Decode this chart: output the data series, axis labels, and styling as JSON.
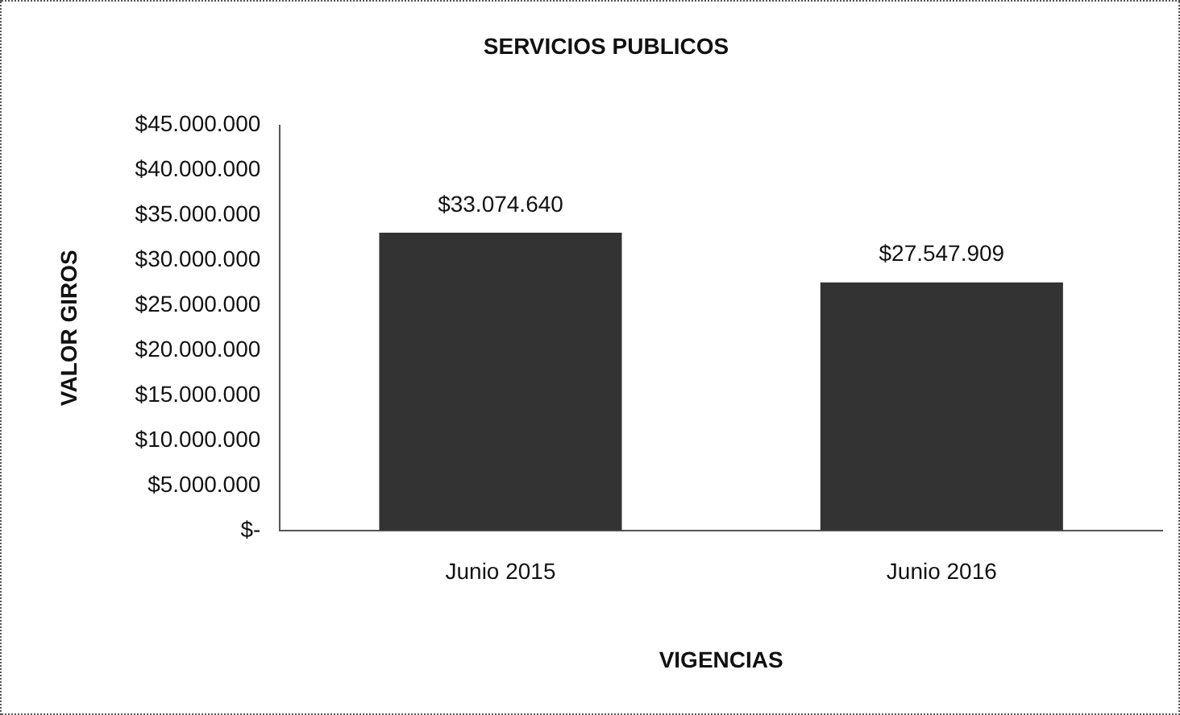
{
  "chart_data": {
    "type": "bar",
    "title": "SERVICIOS PUBLICOS",
    "xlabel": "VIGENCIAS",
    "ylabel": "VALOR GIROS",
    "categories": [
      "Junio 2015",
      "Junio 2016"
    ],
    "values": [
      33074640,
      27547909
    ],
    "value_labels": [
      "$33.074.640",
      "$27.547.909"
    ],
    "color": "#333333",
    "ylim": [
      0,
      45000000
    ],
    "yticks": [
      {
        "value": 0,
        "label": "$-"
      },
      {
        "value": 5000000,
        "label": "$5.000.000"
      },
      {
        "value": 10000000,
        "label": "$10.000.000"
      },
      {
        "value": 15000000,
        "label": "$15.000.000"
      },
      {
        "value": 20000000,
        "label": "$20.000.000"
      },
      {
        "value": 25000000,
        "label": "$25.000.000"
      },
      {
        "value": 30000000,
        "label": "$30.000.000"
      },
      {
        "value": 35000000,
        "label": "$35.000.000"
      },
      {
        "value": 40000000,
        "label": "$40.000.000"
      },
      {
        "value": 45000000,
        "label": "$45.000.000"
      }
    ],
    "grid": false,
    "legend": false
  }
}
